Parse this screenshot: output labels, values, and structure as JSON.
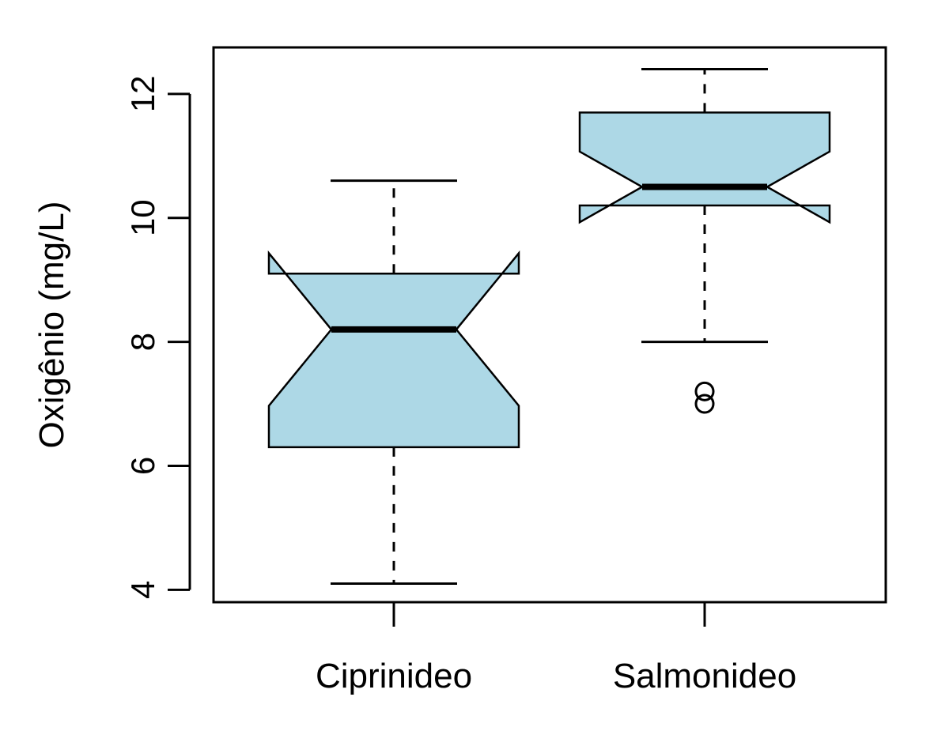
{
  "chart_data": {
    "type": "boxplot",
    "notched": true,
    "ylabel": "Oxigênio (mg/L)",
    "ylim": [
      3.8,
      12.75
    ],
    "yticks": [
      4,
      6,
      8,
      10,
      12
    ],
    "box_fill": "#add8e6",
    "categories": [
      "Ciprinideo",
      "Salmonideo"
    ],
    "boxes": [
      {
        "name": "Ciprinideo",
        "whisker_low": 4.1,
        "q1": 6.3,
        "median": 8.2,
        "q3": 9.1,
        "whisker_high": 10.6,
        "notch_low": 6.97,
        "notch_high": 9.43,
        "outliers": []
      },
      {
        "name": "Salmonideo",
        "whisker_low": 8.0,
        "q1": 10.2,
        "median": 10.5,
        "q3": 11.7,
        "whisker_high": 12.4,
        "notch_low": 9.93,
        "notch_high": 11.07,
        "outliers": [
          7.0,
          7.2
        ]
      }
    ]
  }
}
